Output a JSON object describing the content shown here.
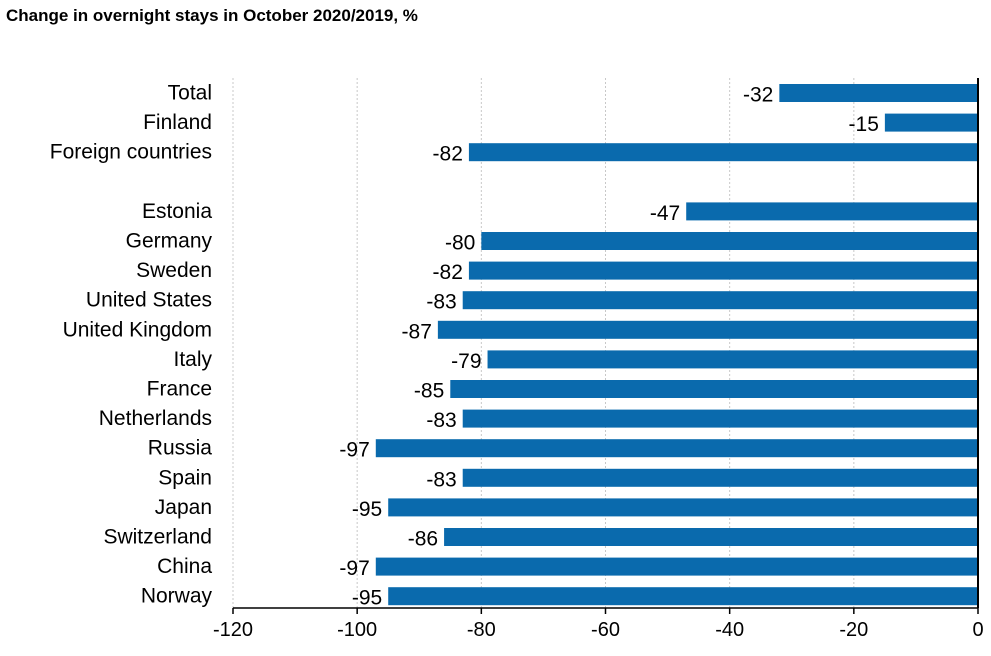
{
  "chart_data": {
    "type": "bar",
    "orientation": "horizontal",
    "title": "Change in overnight stays in October 2020/2019, %",
    "xlabel": "",
    "ylabel": "",
    "categories": [
      "Total",
      "Finland",
      "Foreign countries",
      "Estonia",
      "Germany",
      "Sweden",
      "United States",
      "United Kingdom",
      "Italy",
      "France",
      "Netherlands",
      "Russia",
      "Spain",
      "Japan",
      "Switzerland",
      "China",
      "Norway"
    ],
    "values": [
      -32,
      -15,
      -82,
      -47,
      -80,
      -82,
      -83,
      -87,
      -79,
      -85,
      -83,
      -97,
      -83,
      -95,
      -86,
      -97,
      -95
    ],
    "value_labels": [
      "-32",
      "-15",
      "-82",
      "-47",
      "-80",
      "-82",
      "-83",
      "-87",
      "-79",
      "-85",
      "-83",
      "-97",
      "-83",
      "-95",
      "-86",
      "-97",
      "-95"
    ],
    "xlim": [
      -120,
      0
    ],
    "xticks": [
      -120,
      -100,
      -80,
      -60,
      -40,
      -20,
      0
    ],
    "xtick_labels": [
      "-120",
      "-100",
      "-80",
      "-60",
      "-40",
      "-20",
      "0"
    ],
    "grid": "vertical dotted gridlines",
    "legend": "none",
    "bar_color": "#0a6aad",
    "gridline_color": "#c8c8c8",
    "axis_color": "#000000"
  }
}
